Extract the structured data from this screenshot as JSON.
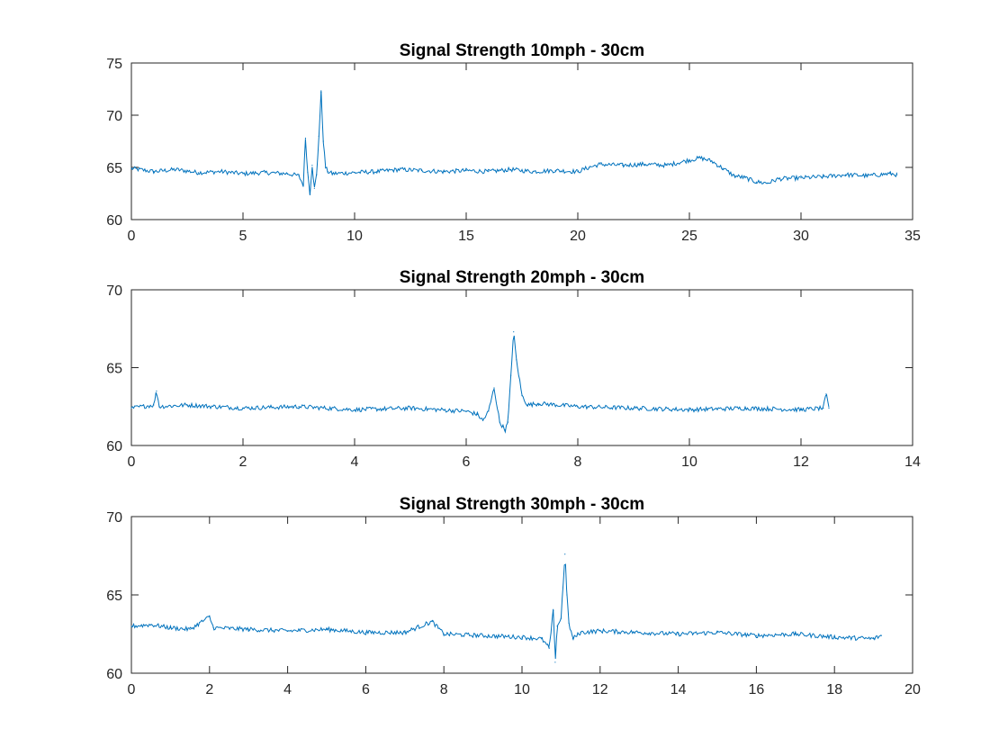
{
  "chart_data": [
    {
      "type": "line",
      "title": "Signal Strength 10mph - 30cm",
      "xlabel": "",
      "ylabel": "",
      "xlim": [
        0,
        35
      ],
      "ylim": [
        60,
        75
      ],
      "x_ticks": [
        0,
        5,
        10,
        15,
        20,
        25,
        30,
        35
      ],
      "y_ticks": [
        60,
        65,
        70,
        75
      ],
      "grid": false,
      "line_color": "#0072BD",
      "series": [
        {
          "x": [
            0,
            1,
            2,
            3,
            4,
            5,
            6,
            7,
            7.5,
            7.7,
            7.8,
            7.9,
            8.0,
            8.1,
            8.2,
            8.3,
            8.4,
            8.5,
            8.6,
            8.7,
            8.8,
            9,
            10,
            11,
            12,
            13,
            14,
            15,
            16,
            17,
            18,
            19,
            20,
            20.5,
            21,
            22,
            23,
            24,
            25,
            25.5,
            26,
            26.5,
            27,
            27.5,
            28,
            28.5,
            29,
            30,
            31,
            32,
            33,
            34,
            34.3
          ],
          "y": [
            64.9,
            64.6,
            64.8,
            64.5,
            64.6,
            64.4,
            64.5,
            64.4,
            64.2,
            63.3,
            67.8,
            64.5,
            62.5,
            65.2,
            63.0,
            64.3,
            68.0,
            72.2,
            67.5,
            65.0,
            64.6,
            64.4,
            64.5,
            64.6,
            64.8,
            64.7,
            64.6,
            64.7,
            64.6,
            64.8,
            64.6,
            64.7,
            64.6,
            65.0,
            65.3,
            65.2,
            65.3,
            65.2,
            65.7,
            65.9,
            65.6,
            64.9,
            64.2,
            64.0,
            63.6,
            63.5,
            63.9,
            64.0,
            64.1,
            64.3,
            64.2,
            64.4,
            64.3
          ]
        }
      ]
    },
    {
      "type": "line",
      "title": "Signal Strength 20mph - 30cm",
      "xlabel": "",
      "ylabel": "",
      "xlim": [
        0,
        14
      ],
      "ylim": [
        60,
        70
      ],
      "x_ticks": [
        0,
        2,
        4,
        6,
        8,
        10,
        12,
        14
      ],
      "y_ticks": [
        60,
        65,
        70
      ],
      "grid": false,
      "line_color": "#0072BD",
      "series": [
        {
          "x": [
            0,
            0.4,
            0.45,
            0.5,
            1,
            2,
            3,
            4,
            5,
            6,
            6.2,
            6.3,
            6.4,
            6.5,
            6.6,
            6.7,
            6.75,
            6.8,
            6.85,
            6.9,
            7.0,
            7.1,
            7.3,
            8,
            9,
            10,
            11,
            12,
            12.4,
            12.45,
            12.5
          ],
          "y": [
            62.4,
            62.6,
            63.5,
            62.5,
            62.6,
            62.4,
            62.5,
            62.3,
            62.4,
            62.2,
            62.0,
            61.6,
            62.2,
            63.7,
            61.5,
            61.0,
            61.5,
            64.5,
            67.3,
            65.5,
            63.2,
            62.6,
            62.7,
            62.5,
            62.4,
            62.3,
            62.4,
            62.3,
            62.4,
            63.3,
            62.4
          ]
        }
      ]
    },
    {
      "type": "line",
      "title": "Signal Strength 30mph - 30cm",
      "xlabel": "",
      "ylabel": "",
      "xlim": [
        0,
        20
      ],
      "ylim": [
        60,
        70
      ],
      "x_ticks": [
        0,
        2,
        4,
        6,
        8,
        10,
        12,
        14,
        16,
        18,
        20
      ],
      "y_ticks": [
        60,
        65,
        70
      ],
      "grid": false,
      "line_color": "#0072BD",
      "series": [
        {
          "x": [
            0,
            0.5,
            1,
            1.5,
            2,
            2.1,
            3,
            4,
            5,
            6,
            7,
            7.7,
            8,
            9,
            10,
            10.5,
            10.7,
            10.8,
            10.85,
            10.9,
            11.0,
            11.1,
            11.15,
            11.2,
            11.3,
            11.5,
            12,
            13,
            14,
            15,
            16,
            17,
            18,
            19,
            19.2
          ],
          "y": [
            63.0,
            63.1,
            62.9,
            62.8,
            63.6,
            62.9,
            62.8,
            62.7,
            62.8,
            62.6,
            62.6,
            63.3,
            62.5,
            62.4,
            62.3,
            62.2,
            61.6,
            64.0,
            60.7,
            63.0,
            63.5,
            67.6,
            65.0,
            63.2,
            62.2,
            62.6,
            62.7,
            62.6,
            62.5,
            62.6,
            62.4,
            62.5,
            62.3,
            62.2,
            62.4
          ]
        }
      ]
    }
  ]
}
